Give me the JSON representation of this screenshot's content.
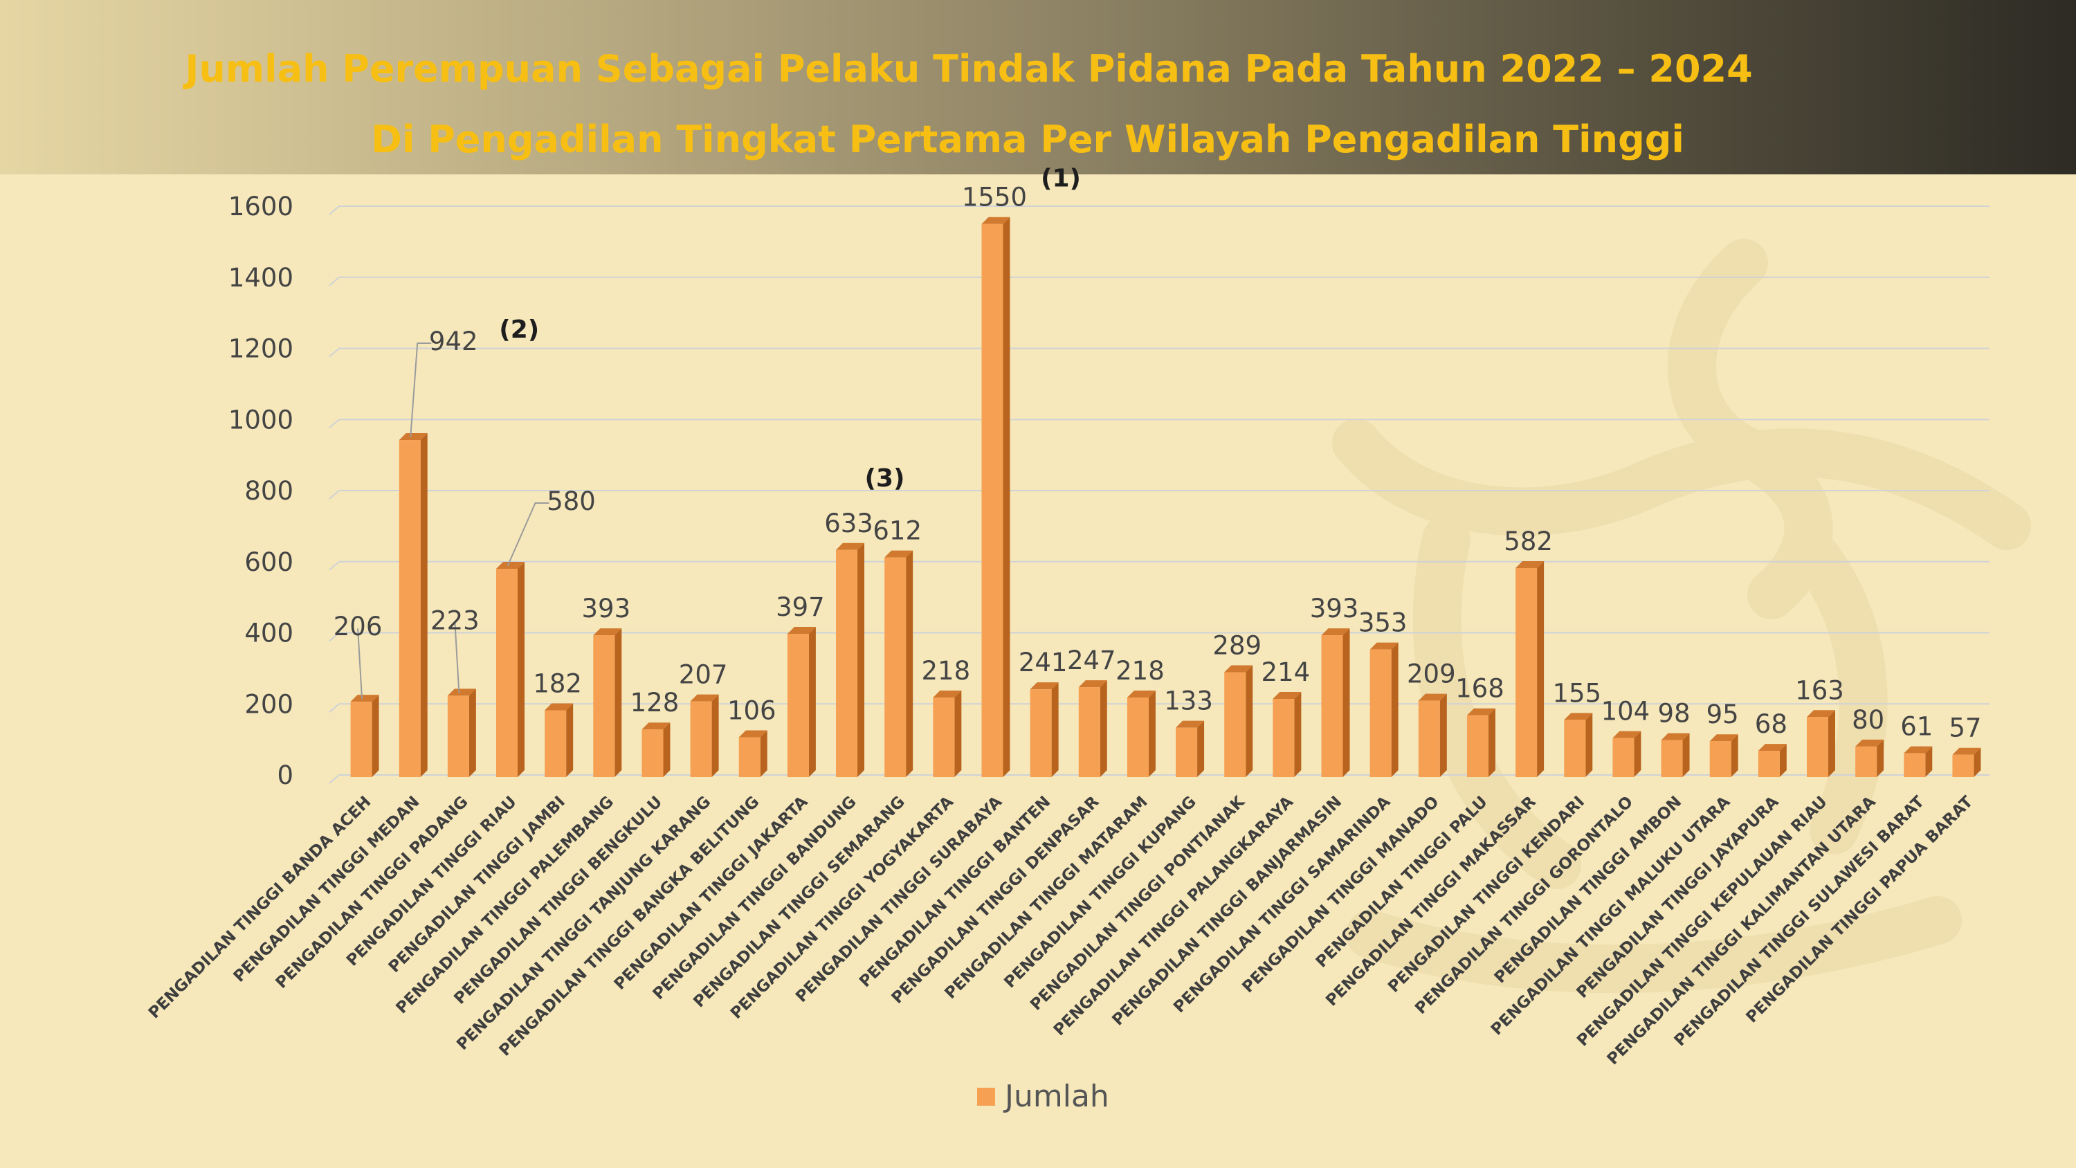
{
  "title_line1": "Jumlah Perempuan Sebagai Pelaku Tindak Pidana Pada Tahun 2022 – 2024",
  "title_line2": "Di Pengadilan Tingkat Pertama Per Wilayah Pengadilan Tinggi",
  "colors": {
    "bar": "#f6a053",
    "bar_side": "#b8641e",
    "bar_top": "#d17a2f",
    "grid": "#cfd2d6",
    "title": "#f7bf13",
    "text": "#444444"
  },
  "chart_data": {
    "type": "bar",
    "ylim": [
      0,
      1600
    ],
    "yticks": [
      0,
      200,
      400,
      600,
      800,
      1000,
      1200,
      1400,
      1600
    ],
    "legend": "bottom",
    "grid": true,
    "categories": [
      "PENGADILAN TINGGI BANDA ACEH",
      "PENGADILAN TINGGI MEDAN",
      "PENGADILAN TINGGI PADANG",
      "PENGADILAN TINGGI RIAU",
      "PENGADILAN TINGGI JAMBI",
      "PENGADILAN TINGGI PALEMBANG",
      "PENGADILAN TINGGI BENGKULU",
      "PENGADILAN TINGGI TANJUNG KARANG",
      "PENGADILAN TINGGI BANGKA BELITUNG",
      "PENGADILAN TINGGI JAKARTA",
      "PENGADILAN TINGGI BANDUNG",
      "PENGADILAN TINGGI SEMARANG",
      "PENGADILAN TINGGI YOGYAKARTA",
      "PENGADILAN TINGGI SURABAYA",
      "PENGADILAN TINGGI BANTEN",
      "PENGADILAN TINGGI DENPASAR",
      "PENGADILAN TINGGI MATARAM",
      "PENGADILAN TINGGI KUPANG",
      "PENGADILAN TINGGI PONTIANAK",
      "PENGADILAN TINGGI PALANGKARAYA",
      "PENGADILAN TINGGI BANJARMASIN",
      "PENGADILAN TINGGI SAMARINDA",
      "PENGADILAN TINGGI MANADO",
      "PENGADILAN TINGGI PALU",
      "PENGADILAN TINGGI MAKASSAR",
      "PENGADILAN TINGGI KENDARI",
      "PENGADILAN TINGGI GORONTALO",
      "PENGADILAN TINGGI AMBON",
      "PENGADILAN TINGGI MALUKU UTARA",
      "PENGADILAN TINGGI JAYAPURA",
      "PENGADILAN TINGGI KEPULAUAN RIAU",
      "PENGADILAN TINGGI KALIMANTAN UTARA",
      "PENGADILAN TINGGI SULAWESI BARAT",
      "PENGADILAN TINGGI PAPUA BARAT"
    ],
    "series": [
      {
        "name": "Jumlah",
        "values": [
          206,
          942,
          223,
          580,
          182,
          393,
          128,
          207,
          106,
          397,
          633,
          612,
          218,
          1550,
          241,
          247,
          218,
          133,
          289,
          214,
          393,
          353,
          209,
          168,
          582,
          155,
          104,
          98,
          95,
          68,
          163,
          80,
          61,
          57
        ]
      }
    ],
    "annotations": [
      {
        "category": "PENGADILAN TINGGI SURABAYA",
        "text": "(1)"
      },
      {
        "category": "PENGADILAN TINGGI MEDAN",
        "text": "(2)"
      },
      {
        "category": "PENGADILAN TINGGI BANDUNG",
        "text": "(3)"
      }
    ]
  }
}
